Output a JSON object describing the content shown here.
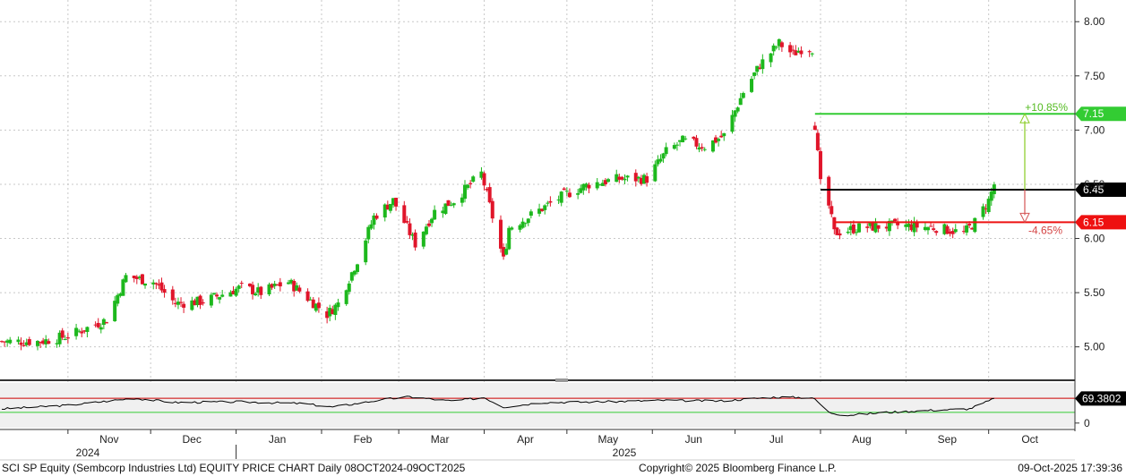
{
  "footer": {
    "left": "SCI SP Equity (Sembcorp Industries Ltd) EQUITY PRICE CHART Daily 08OCT2024-09OCT2025",
    "center": "Copyright© 2025 Bloomberg Finance L.P.",
    "right": "09-Oct-2025 17:39:36"
  },
  "colors": {
    "up": "#1db81d",
    "down": "#e0152a",
    "target": "#33cc33",
    "current": "#000000",
    "stop": "#ee1111",
    "rsi_line": "#000000",
    "rsi_upper": "#cc0000",
    "rsi_lower": "#33cc33",
    "grid": "#c8c8c8",
    "panel_bg": "#f0f0f0"
  },
  "chart_data": [
    {
      "type": "candlestick",
      "title": "",
      "ylim": [
        4.7,
        8.2
      ],
      "yticks": [
        "8.00",
        "7.50",
        "7.00",
        "6.50",
        "6.00",
        "5.50",
        "5.00"
      ],
      "x_month_labels": [
        "Nov",
        "Dec",
        "Jan",
        "Feb",
        "Mar",
        "Apr",
        "May",
        "Jun",
        "Jul",
        "Aug",
        "Sep",
        "Oct"
      ],
      "x_year_labels": [
        "2024",
        "2025"
      ],
      "grid": true,
      "close_path": [
        [
          "2024-10-08",
          5.05
        ],
        [
          "2024-10-22",
          5.05
        ],
        [
          "2024-11-01",
          5.1
        ],
        [
          "2024-11-15",
          5.25
        ],
        [
          "2024-11-22",
          5.65
        ],
        [
          "2024-12-02",
          5.6
        ],
        [
          "2024-12-10",
          5.4
        ],
        [
          "2024-12-20",
          5.42
        ],
        [
          "2025-01-03",
          5.55
        ],
        [
          "2025-01-10",
          5.5
        ],
        [
          "2025-01-20",
          5.6
        ],
        [
          "2025-01-27",
          5.45
        ],
        [
          "2025-02-03",
          5.3
        ],
        [
          "2025-02-07",
          5.4
        ],
        [
          "2025-02-14",
          5.8
        ],
        [
          "2025-02-20",
          6.2
        ],
        [
          "2025-02-27",
          6.35
        ],
        [
          "2025-03-07",
          5.95
        ],
        [
          "2025-03-14",
          6.25
        ],
        [
          "2025-03-21",
          6.35
        ],
        [
          "2025-03-31",
          6.6
        ],
        [
          "2025-04-04",
          6.2
        ],
        [
          "2025-04-08",
          5.8
        ],
        [
          "2025-04-10",
          6.1
        ],
        [
          "2025-04-17",
          6.2
        ],
        [
          "2025-04-30",
          6.4
        ],
        [
          "2025-05-09",
          6.5
        ],
        [
          "2025-05-20",
          6.55
        ],
        [
          "2025-05-30",
          6.55
        ],
        [
          "2025-06-06",
          6.8
        ],
        [
          "2025-06-12",
          6.9
        ],
        [
          "2025-06-20",
          6.85
        ],
        [
          "2025-06-27",
          6.95
        ],
        [
          "2025-07-04",
          7.35
        ],
        [
          "2025-07-10",
          7.6
        ],
        [
          "2025-07-17",
          7.8
        ],
        [
          "2025-07-22",
          7.7
        ],
        [
          "2025-07-25",
          7.75
        ],
        [
          "2025-07-29",
          7.75
        ]
      ],
      "close_path_2": [
        [
          "2025-07-30",
          7.05
        ],
        [
          "2025-08-01",
          6.5
        ],
        [
          "2025-08-04",
          6.3
        ],
        [
          "2025-08-06",
          6.05
        ],
        [
          "2025-08-15",
          6.1
        ],
        [
          "2025-08-29",
          6.12
        ],
        [
          "2025-09-12",
          6.1
        ],
        [
          "2025-09-22",
          6.05
        ],
        [
          "2025-09-26",
          6.15
        ],
        [
          "2025-10-01",
          6.35
        ],
        [
          "2025-10-03",
          6.5
        ]
      ],
      "levels": [
        {
          "label": "7.15",
          "value": 7.15,
          "role": "target"
        },
        {
          "label": "6.45",
          "value": 6.45,
          "role": "current"
        },
        {
          "label": "6.15",
          "value": 6.15,
          "role": "stop"
        }
      ],
      "annotations": [
        {
          "text": "+10.85%",
          "role": "upside"
        },
        {
          "text": "-4.65%",
          "role": "downside"
        }
      ]
    },
    {
      "type": "line",
      "title": "",
      "ylim": [
        -8,
        108
      ],
      "yticks": [
        "0"
      ],
      "current_label": "69.3802",
      "current_value": 69.3802,
      "reference_lines": [
        70,
        30
      ],
      "series_path": [
        [
          "2024-10-08",
          40
        ],
        [
          "2024-11-01",
          50
        ],
        [
          "2024-11-25",
          70
        ],
        [
          "2024-12-10",
          58
        ],
        [
          "2025-01-02",
          60
        ],
        [
          "2025-01-25",
          55
        ],
        [
          "2025-02-05",
          45
        ],
        [
          "2025-02-25",
          68
        ],
        [
          "2025-03-05",
          74
        ],
        [
          "2025-03-20",
          62
        ],
        [
          "2025-04-01",
          72
        ],
        [
          "2025-04-08",
          45
        ],
        [
          "2025-04-22",
          58
        ],
        [
          "2025-05-15",
          60
        ],
        [
          "2025-06-05",
          64
        ],
        [
          "2025-06-25",
          62
        ],
        [
          "2025-07-15",
          73
        ],
        [
          "2025-07-29",
          72
        ],
        [
          "2025-07-31",
          60
        ],
        [
          "2025-08-04",
          30
        ],
        [
          "2025-08-10",
          22
        ],
        [
          "2025-08-25",
          30
        ],
        [
          "2025-09-10",
          36
        ],
        [
          "2025-09-24",
          40
        ],
        [
          "2025-10-01",
          62
        ],
        [
          "2025-10-03",
          69.38
        ]
      ]
    }
  ]
}
